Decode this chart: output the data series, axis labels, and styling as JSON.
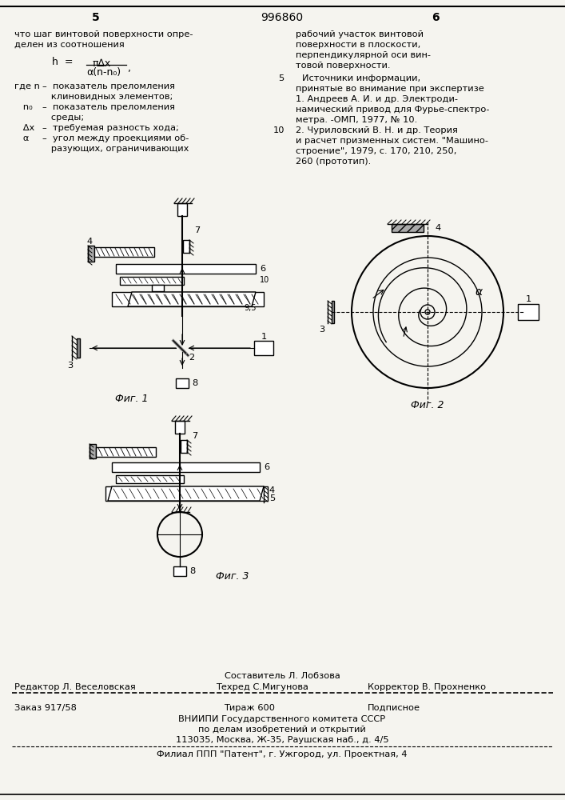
{
  "page_color": "#f5f4ef",
  "header": {
    "left_num": "5",
    "center_num": "996860",
    "right_num": "6"
  },
  "footer": {
    "composer": "Составитель Л. Лобзова",
    "editor": "Редактор Л. Веселовская",
    "techred": "Техред С.Мигунова",
    "corrector": "Корректор В. Прохненко",
    "order": "Заказ 917/58",
    "tirage": "Тираж 600",
    "podpisnoe": "Подписное",
    "org": "ВНИИПИ Государственного комитета СССР",
    "org2": "по делам изобретений и открытий",
    "address": "113035, Москва, Ж-35, Раушская наб., д. 4/5",
    "filial": "Филиал ППП \"Патент\", г. Ужгород, ул. Проектная, 4"
  }
}
